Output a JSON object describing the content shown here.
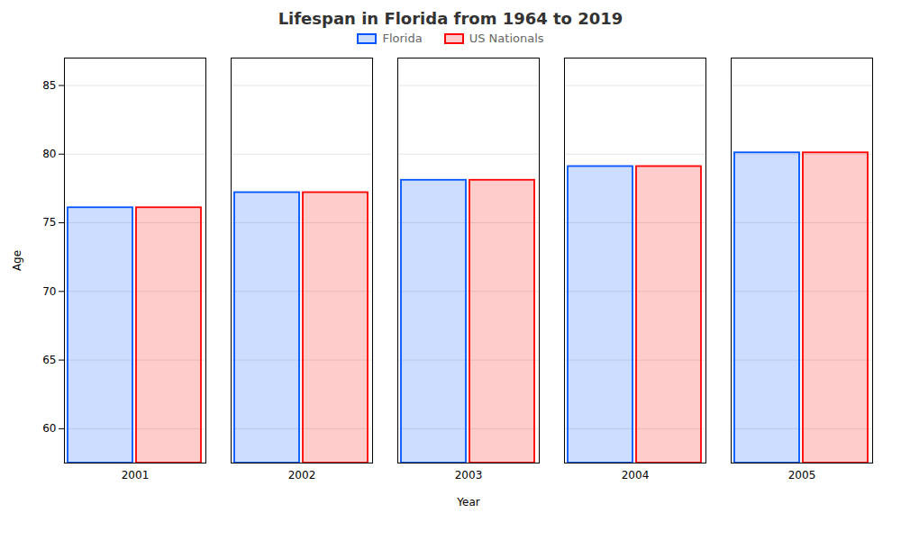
{
  "chart_data": {
    "type": "bar",
    "title": "Lifespan in Florida from 1964 to 2019",
    "x_label": "Year",
    "y_label": "Age",
    "categories": [
      2001,
      2002,
      2003,
      2004,
      2005
    ],
    "series": [
      {
        "name": "Florida",
        "color": "#0055ff",
        "values": [
          76.1,
          77.2,
          78.1,
          79.1,
          80.1
        ]
      },
      {
        "name": "US Nationals",
        "color": "#ff0000",
        "values": [
          76.1,
          77.2,
          78.1,
          79.1,
          80.1
        ]
      }
    ],
    "ylim": [
      57.5,
      87
    ],
    "yticks": [
      60,
      65,
      70,
      75,
      80,
      85
    ],
    "grid": true,
    "legend": "top"
  }
}
